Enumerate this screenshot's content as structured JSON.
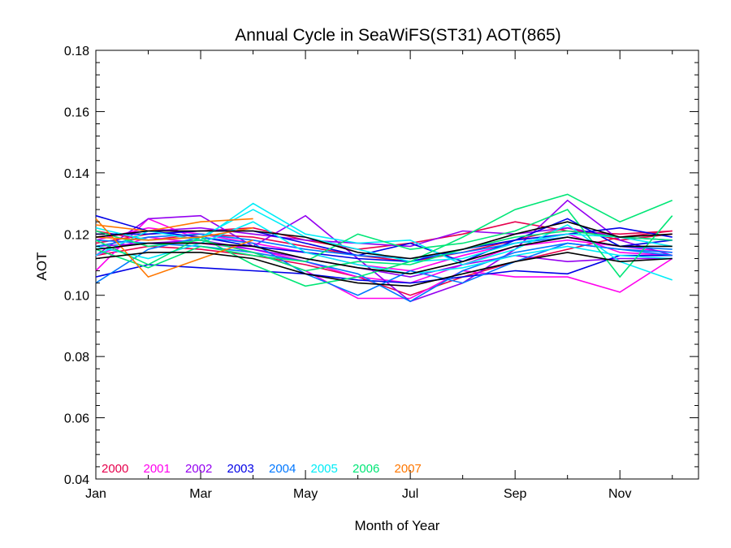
{
  "chart_data": {
    "type": "line",
    "title": "Annual Cycle in SeaWiFS(ST31) AOT(865)",
    "xlabel": "Month of Year",
    "ylabel": "AOT",
    "xlim": [
      1,
      12.5
    ],
    "ylim": [
      0.04,
      0.18
    ],
    "xticks": [
      {
        "value": 1,
        "label": "Jan"
      },
      {
        "value": 3,
        "label": "Mar"
      },
      {
        "value": 5,
        "label": "May"
      },
      {
        "value": 7,
        "label": "Jul"
      },
      {
        "value": 9,
        "label": "Sep"
      },
      {
        "value": 11,
        "label": "Nov"
      }
    ],
    "yticks": [
      {
        "value": 0.04,
        "label": "0.04"
      },
      {
        "value": 0.06,
        "label": "0.06"
      },
      {
        "value": 0.08,
        "label": "0.08"
      },
      {
        "value": 0.1,
        "label": "0.10"
      },
      {
        "value": 0.12,
        "label": "0.12"
      },
      {
        "value": 0.14,
        "label": "0.14"
      },
      {
        "value": 0.16,
        "label": "0.16"
      },
      {
        "value": 0.18,
        "label": "0.18"
      }
    ],
    "grid": false,
    "legend_position": "bottom-left inside plot",
    "legend": [
      {
        "name": "2000",
        "color": "#e6004c"
      },
      {
        "name": "2001",
        "color": "#ff00ee"
      },
      {
        "name": "2002",
        "color": "#9400f0"
      },
      {
        "name": "2003",
        "color": "#0000e6"
      },
      {
        "name": "2004",
        "color": "#0077ff"
      },
      {
        "name": "2005",
        "color": "#00ecf7"
      },
      {
        "name": "2006",
        "color": "#00e676"
      },
      {
        "name": "2007",
        "color": "#ff7700"
      }
    ],
    "series": [
      {
        "color": "#e6004c",
        "x": [
          1,
          2,
          3,
          4,
          5,
          6,
          7,
          8,
          9,
          10,
          11,
          12
        ],
        "y": [
          0.117,
          0.12,
          0.121,
          0.122,
          0.118,
          0.115,
          0.117,
          0.12,
          0.124,
          0.121,
          0.12,
          0.121
        ]
      },
      {
        "color": "#e6004c",
        "x": [
          1,
          2,
          3,
          4,
          5,
          6,
          7,
          8,
          9,
          10,
          11,
          12
        ],
        "y": [
          0.113,
          0.116,
          0.115,
          0.113,
          0.11,
          0.106,
          0.1,
          0.106,
          0.111,
          0.115,
          0.119,
          0.121
        ]
      },
      {
        "color": "#e6004c",
        "x": [
          1,
          2,
          3,
          4,
          5,
          6,
          7,
          8,
          9,
          10,
          11,
          12
        ],
        "y": [
          0.121,
          0.118,
          0.12,
          0.119,
          0.116,
          0.113,
          0.111,
          0.114,
          0.118,
          0.122,
          0.118,
          0.12
        ]
      },
      {
        "color": "#ff00ee",
        "x": [
          1,
          2,
          3,
          4,
          5,
          6,
          7,
          8,
          9,
          10,
          11,
          12
        ],
        "y": [
          0.108,
          0.125,
          0.118,
          0.114,
          0.108,
          0.099,
          0.099,
          0.108,
          0.106,
          0.106,
          0.101,
          0.112
        ]
      },
      {
        "color": "#ff00ee",
        "x": [
          1,
          2,
          3,
          4,
          5,
          6,
          7,
          8,
          9,
          10,
          11,
          12
        ],
        "y": [
          0.113,
          0.119,
          0.117,
          0.115,
          0.111,
          0.106,
          0.104,
          0.11,
          0.116,
          0.118,
          0.116,
          0.114
        ]
      },
      {
        "color": "#ff00ee",
        "x": [
          1,
          2,
          3,
          4,
          5,
          6,
          7,
          8,
          9,
          10,
          11,
          12
        ],
        "y": [
          0.118,
          0.122,
          0.12,
          0.117,
          0.114,
          0.11,
          0.108,
          0.113,
          0.117,
          0.12,
          0.114,
          0.113
        ]
      },
      {
        "color": "#9400f0",
        "x": [
          1,
          2,
          3,
          4,
          5,
          6,
          7,
          8,
          9,
          10,
          11,
          12
        ],
        "y": [
          0.113,
          0.125,
          0.126,
          0.116,
          0.126,
          0.112,
          0.098,
          0.104,
          0.115,
          0.131,
          0.118,
          0.113
        ]
      },
      {
        "color": "#9400f0",
        "x": [
          1,
          2,
          3,
          4,
          5,
          6,
          7,
          8,
          9,
          10,
          11,
          12
        ],
        "y": [
          0.119,
          0.121,
          0.122,
          0.12,
          0.118,
          0.117,
          0.116,
          0.121,
          0.12,
          0.122,
          0.119,
          0.118
        ]
      },
      {
        "color": "#9400f0",
        "x": [
          1,
          2,
          3,
          4,
          5,
          6,
          7,
          8,
          9,
          10,
          11,
          12
        ],
        "y": [
          0.116,
          0.117,
          0.118,
          0.115,
          0.112,
          0.109,
          0.106,
          0.11,
          0.113,
          0.111,
          0.112,
          0.112
        ]
      },
      {
        "color": "#0000e6",
        "x": [
          1,
          2,
          3,
          4,
          5,
          6,
          7,
          8,
          9,
          10,
          11,
          12
        ],
        "y": [
          0.126,
          0.121,
          0.119,
          0.116,
          0.114,
          0.112,
          0.111,
          0.115,
          0.118,
          0.125,
          0.116,
          0.118
        ]
      },
      {
        "color": "#0000e6",
        "x": [
          1,
          2,
          3,
          4,
          5,
          6,
          7,
          8,
          9,
          10,
          11,
          12
        ],
        "y": [
          0.106,
          0.11,
          0.109,
          0.108,
          0.107,
          0.105,
          0.104,
          0.106,
          0.108,
          0.107,
          0.113,
          0.113
        ]
      },
      {
        "color": "#0000e6",
        "x": [
          1,
          2,
          3,
          4,
          5,
          6,
          7,
          8,
          9,
          10,
          11,
          12
        ],
        "y": [
          0.12,
          0.12,
          0.121,
          0.121,
          0.117,
          0.113,
          0.117,
          0.111,
          0.118,
          0.12,
          0.122,
          0.119
        ]
      },
      {
        "color": "#0077ff",
        "x": [
          1,
          2,
          3,
          4,
          5,
          6,
          7,
          8,
          9,
          10,
          11,
          12
        ],
        "y": [
          0.104,
          0.115,
          0.119,
          0.117,
          0.107,
          0.1,
          0.108,
          0.104,
          0.111,
          0.117,
          0.115,
          0.114
        ]
      },
      {
        "color": "#0077ff",
        "x": [
          1,
          2,
          3,
          4,
          5,
          6,
          7,
          8,
          9,
          10,
          11,
          12
        ],
        "y": [
          0.116,
          0.119,
          0.12,
          0.118,
          0.115,
          0.113,
          0.112,
          0.114,
          0.117,
          0.119,
          0.116,
          0.115
        ]
      },
      {
        "color": "#0077ff",
        "x": [
          1,
          2,
          3,
          4,
          5,
          6,
          7,
          8,
          9,
          10,
          11,
          12
        ],
        "y": [
          0.118,
          0.117,
          0.116,
          0.114,
          0.111,
          0.107,
          0.098,
          0.108,
          0.114,
          0.117,
          0.115,
          0.113
        ]
      },
      {
        "color": "#00ecf7",
        "x": [
          1,
          2,
          3,
          4,
          5,
          6,
          7,
          8,
          9,
          10,
          11,
          12
        ],
        "y": [
          0.113,
          0.121,
          0.118,
          0.13,
          0.12,
          0.117,
          0.118,
          0.11,
          0.115,
          0.123,
          0.111,
          0.105
        ]
      },
      {
        "color": "#00ecf7",
        "x": [
          1,
          2,
          3,
          4,
          5,
          6,
          7,
          8,
          9,
          10,
          11,
          12
        ],
        "y": [
          0.122,
          0.118,
          0.119,
          0.128,
          0.119,
          0.115,
          0.111,
          0.112,
          0.117,
          0.12,
          0.119,
          0.116
        ]
      },
      {
        "color": "#00ecf7",
        "x": [
          1,
          2,
          3,
          4,
          5,
          6,
          7,
          8,
          9,
          10,
          11,
          12
        ],
        "y": [
          0.116,
          0.112,
          0.117,
          0.124,
          0.114,
          0.11,
          0.107,
          0.109,
          0.113,
          0.116,
          0.113,
          0.112
        ]
      },
      {
        "color": "#00e676",
        "x": [
          1,
          2,
          3,
          4,
          5,
          6,
          7,
          8,
          9,
          10,
          11,
          12
        ],
        "y": [
          0.118,
          0.11,
          0.119,
          0.11,
          0.103,
          0.106,
          0.111,
          0.119,
          0.128,
          0.133,
          0.124,
          0.131
        ]
      },
      {
        "color": "#00e676",
        "x": [
          1,
          2,
          3,
          4,
          5,
          6,
          7,
          8,
          9,
          10,
          11,
          12
        ],
        "y": [
          0.115,
          0.109,
          0.116,
          0.113,
          0.111,
          0.12,
          0.115,
          0.117,
          0.121,
          0.128,
          0.106,
          0.126
        ]
      },
      {
        "color": "#00e676",
        "x": [
          1,
          2,
          3,
          4,
          5,
          6,
          7,
          8,
          9,
          10,
          11,
          12
        ],
        "y": [
          0.121,
          0.116,
          0.118,
          0.114,
          0.108,
          0.111,
          0.11,
          0.115,
          0.119,
          0.121,
          0.119,
          0.118
        ]
      },
      {
        "color": "#ff7700",
        "x": [
          1,
          2,
          3,
          4
        ],
        "y": [
          0.125,
          0.106,
          0.112,
          0.118
        ]
      },
      {
        "color": "#ff7700",
        "x": [
          1,
          2,
          3,
          4
        ],
        "y": [
          0.123,
          0.121,
          0.124,
          0.125
        ]
      },
      {
        "color": "#ff7700",
        "x": [
          1,
          2,
          3,
          4
        ],
        "y": [
          0.119,
          0.118,
          0.119,
          0.122
        ]
      },
      {
        "color": "#000000",
        "x": [
          1,
          2,
          3,
          4,
          5,
          6,
          7,
          8,
          9,
          10,
          11,
          12
        ],
        "y": [
          0.119,
          0.121,
          0.121,
          0.121,
          0.119,
          0.114,
          0.112,
          0.115,
          0.12,
          0.124,
          0.119,
          0.12
        ]
      },
      {
        "color": "#000000",
        "x": [
          1,
          2,
          3,
          4,
          5,
          6,
          7,
          8,
          9,
          10,
          11,
          12
        ],
        "y": [
          0.115,
          0.117,
          0.117,
          0.116,
          0.112,
          0.109,
          0.107,
          0.111,
          0.116,
          0.119,
          0.116,
          0.116
        ]
      },
      {
        "color": "#000000",
        "x": [
          1,
          2,
          3,
          4,
          5,
          6,
          7,
          8,
          9,
          10,
          11,
          12
        ],
        "y": [
          0.112,
          0.114,
          0.114,
          0.112,
          0.107,
          0.104,
          0.103,
          0.107,
          0.111,
          0.114,
          0.111,
          0.112
        ]
      }
    ]
  }
}
